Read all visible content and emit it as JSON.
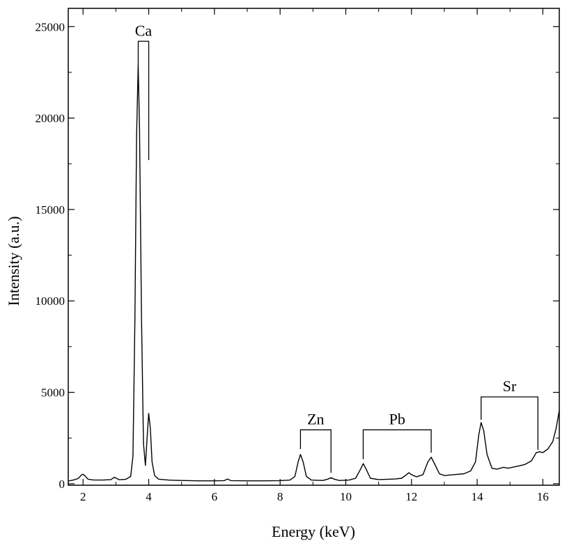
{
  "chart_data": {
    "type": "line",
    "title": "",
    "xlabel": "Energy (keV)",
    "ylabel": "Intensity (a.u.)",
    "xlim": [
      1.55,
      16.5
    ],
    "ylim": [
      -80,
      26000
    ],
    "x_ticks": [
      2,
      4,
      6,
      8,
      10,
      12,
      14,
      16
    ],
    "y_ticks": [
      0,
      5000,
      10000,
      15000,
      20000,
      25000
    ],
    "grid": false,
    "legend": "none",
    "line_color": "#000000",
    "series": [
      {
        "points": [
          [
            1.55,
            150
          ],
          [
            1.7,
            200
          ],
          [
            1.85,
            280
          ],
          [
            1.95,
            480
          ],
          [
            2.0,
            520
          ],
          [
            2.07,
            420
          ],
          [
            2.15,
            250
          ],
          [
            2.3,
            210
          ],
          [
            2.6,
            200
          ],
          [
            2.85,
            230
          ],
          [
            2.95,
            350
          ],
          [
            3.02,
            300
          ],
          [
            3.1,
            220
          ],
          [
            3.3,
            240
          ],
          [
            3.45,
            400
          ],
          [
            3.52,
            1500
          ],
          [
            3.58,
            9000
          ],
          [
            3.63,
            19000
          ],
          [
            3.68,
            22900
          ],
          [
            3.72,
            19500
          ],
          [
            3.78,
            9000
          ],
          [
            3.84,
            2200
          ],
          [
            3.9,
            1000
          ],
          [
            3.95,
            2500
          ],
          [
            4.0,
            3850
          ],
          [
            4.05,
            3000
          ],
          [
            4.1,
            1200
          ],
          [
            4.18,
            450
          ],
          [
            4.3,
            250
          ],
          [
            4.6,
            200
          ],
          [
            5.0,
            180
          ],
          [
            5.5,
            160
          ],
          [
            6.0,
            160
          ],
          [
            6.3,
            170
          ],
          [
            6.4,
            260
          ],
          [
            6.5,
            170
          ],
          [
            7.0,
            160
          ],
          [
            7.5,
            160
          ],
          [
            8.0,
            170
          ],
          [
            8.3,
            200
          ],
          [
            8.45,
            400
          ],
          [
            8.55,
            1200
          ],
          [
            8.62,
            1600
          ],
          [
            8.7,
            1200
          ],
          [
            8.8,
            400
          ],
          [
            8.95,
            200
          ],
          [
            9.3,
            180
          ],
          [
            9.45,
            250
          ],
          [
            9.55,
            330
          ],
          [
            9.65,
            250
          ],
          [
            9.8,
            180
          ],
          [
            10.1,
            200
          ],
          [
            10.3,
            300
          ],
          [
            10.45,
            800
          ],
          [
            10.53,
            1100
          ],
          [
            10.62,
            800
          ],
          [
            10.75,
            300
          ],
          [
            11.0,
            230
          ],
          [
            11.5,
            260
          ],
          [
            11.7,
            300
          ],
          [
            11.85,
            500
          ],
          [
            11.92,
            600
          ],
          [
            12.0,
            500
          ],
          [
            12.15,
            380
          ],
          [
            12.35,
            500
          ],
          [
            12.5,
            1200
          ],
          [
            12.6,
            1450
          ],
          [
            12.7,
            1100
          ],
          [
            12.85,
            550
          ],
          [
            13.0,
            450
          ],
          [
            13.3,
            500
          ],
          [
            13.6,
            550
          ],
          [
            13.8,
            700
          ],
          [
            13.95,
            1200
          ],
          [
            14.05,
            2700
          ],
          [
            14.12,
            3350
          ],
          [
            14.2,
            2900
          ],
          [
            14.3,
            1600
          ],
          [
            14.45,
            850
          ],
          [
            14.6,
            800
          ],
          [
            14.8,
            900
          ],
          [
            14.95,
            850
          ],
          [
            15.2,
            950
          ],
          [
            15.45,
            1050
          ],
          [
            15.65,
            1250
          ],
          [
            15.8,
            1700
          ],
          [
            15.9,
            1750
          ],
          [
            16.0,
            1700
          ],
          [
            16.15,
            1900
          ],
          [
            16.3,
            2300
          ],
          [
            16.4,
            3000
          ],
          [
            16.5,
            4000
          ]
        ]
      }
    ],
    "annotations": [
      {
        "label": "Ca",
        "left_x": 3.68,
        "left_bottom_y": 22900,
        "right_x": 4.0,
        "right_bottom_y": 17700,
        "top_y": 24200
      },
      {
        "label": "Zn",
        "left_x": 8.62,
        "left_bottom_y": 1900,
        "right_x": 9.55,
        "right_bottom_y": 600,
        "top_y": 2950
      },
      {
        "label": "Pb",
        "left_x": 10.53,
        "left_bottom_y": 1350,
        "right_x": 12.6,
        "right_bottom_y": 1700,
        "top_y": 2950
      },
      {
        "label": "Sr",
        "left_x": 14.12,
        "left_bottom_y": 3500,
        "right_x": 15.85,
        "right_bottom_y": 1850,
        "top_y": 4750
      }
    ]
  }
}
